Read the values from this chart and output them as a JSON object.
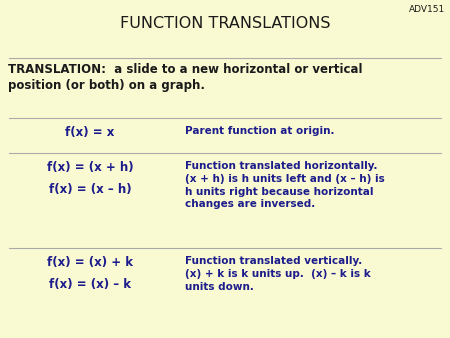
{
  "title": "FUNCTION TRANSLATIONS",
  "title_color": "#1a1a1a",
  "title_fontsize": 11.5,
  "background_color": "#fafad2",
  "adv_label": "ADV151",
  "adv_color": "#1a1a1a",
  "adv_fontsize": 6.5,
  "translation_label": "TRANSLATION:  a slide to a new horizontal or vertical\nposition (or both) on a graph.",
  "translation_fontsize": 8.5,
  "translation_color": "#1a1a1a",
  "row1_left": "f(x) = x",
  "row1_right": "Parent function at origin.",
  "row2_left_1": "f(x) = (x + h)",
  "row2_left_2": "f(x) = (x – h)",
  "row2_right": "Function translated horizontally.\n(x + h) is h units left and (x – h) is\nh units right because horizontal\nchanges are inversed.",
  "row3_left_1": "f(x) = (x) + k",
  "row3_left_2": "f(x) = (x) – k",
  "row3_right": "Function translated vertically.\n(x) + k is k units up.  (x) – k is k\nunits down.",
  "formula_color": "#1c1c8c",
  "desc_color": "#1c1c8c",
  "line_color": "#aaaaaa",
  "formula_fontsize": 8.5,
  "desc_fontsize": 7.5
}
